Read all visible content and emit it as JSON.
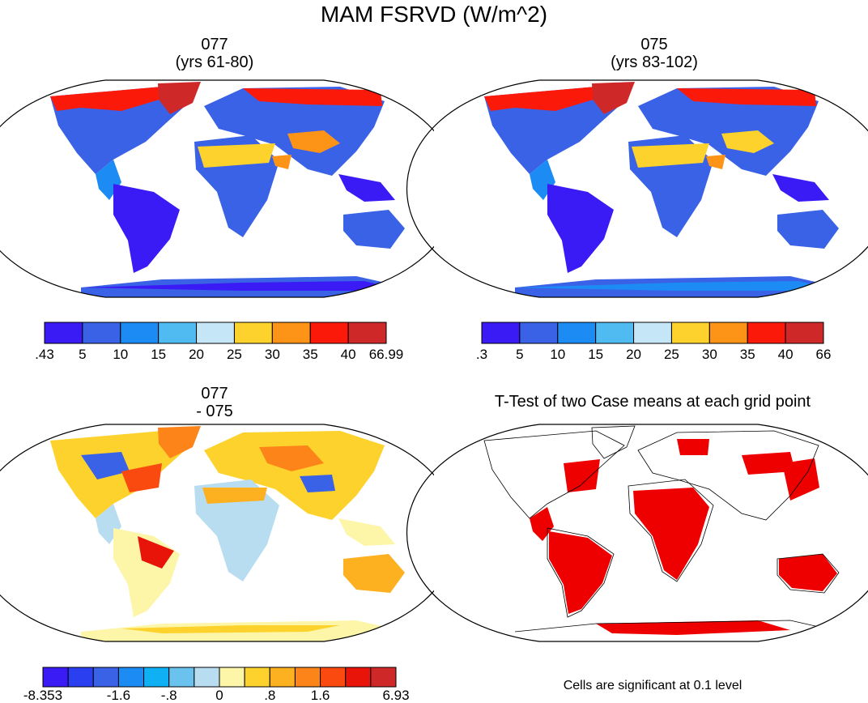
{
  "figure": {
    "title": "MAM FSRVD (W/m^2)"
  },
  "panels": [
    {
      "id": "p077",
      "title_line1": "077",
      "title_line2": "(yrs 61-80)",
      "colorbar": {
        "colors": [
          "#3a1af5",
          "#3a62e6",
          "#1c8cf4",
          "#4fbbf1",
          "#c4e6f6",
          "#fdd22c",
          "#fd9418",
          "#fb1a0a",
          "#cf2828"
        ],
        "labels": [
          ".43",
          "5",
          "10",
          "15",
          "20",
          "25",
          "30",
          "35",
          "40",
          "66.99"
        ]
      }
    },
    {
      "id": "p075",
      "title_line1": "075",
      "title_line2": "(yrs 83-102)",
      "colorbar": {
        "colors": [
          "#3a1af5",
          "#3a62e6",
          "#1c8cf4",
          "#4fbbf1",
          "#c4e6f6",
          "#fdd22c",
          "#fd9418",
          "#fb1a0a",
          "#cf2828"
        ],
        "labels": [
          ".3",
          "5",
          "10",
          "15",
          "20",
          "25",
          "30",
          "35",
          "40",
          "66"
        ]
      }
    },
    {
      "id": "pdiff",
      "title_line1": "077",
      "title_line2": "- 075",
      "colorbar": {
        "colors": [
          "#3a1af5",
          "#2a40f0",
          "#3a62e6",
          "#1c8cf4",
          "#10b0f4",
          "#6ac2ef",
          "#b8dcf0",
          "#fdf6a8",
          "#fdd22c",
          "#fdb020",
          "#fd8418",
          "#fb4a10",
          "#e8140a",
          "#cf2828"
        ],
        "labels": [
          "-8.353",
          "-1.6",
          "-.8",
          "0",
          ".8",
          "1.6",
          "6.93"
        ]
      }
    },
    {
      "id": "pttest",
      "title_line1": "T-Test of two Case means at each grid point",
      "note": "Cells are significant at 0.1 level",
      "colors": {
        "significant": "#ee0000"
      }
    }
  ]
}
